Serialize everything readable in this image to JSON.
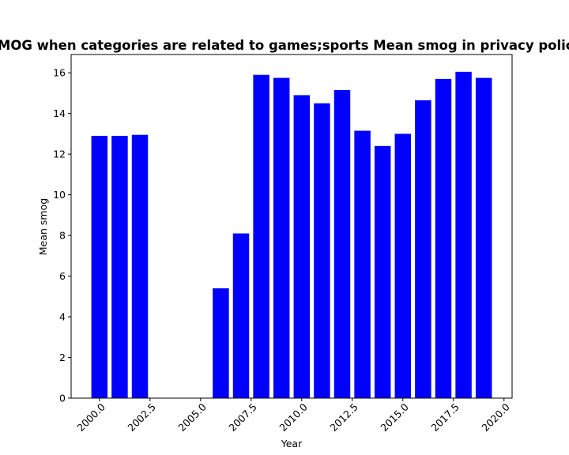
{
  "chart_data": {
    "type": "bar",
    "title": "Mean SMOG when categories are related to games;sports Mean smog in privacy policies by Year",
    "xlabel": "Year",
    "ylabel": "Mean smog",
    "x": [
      2000,
      2001,
      2002,
      2006,
      2007,
      2008,
      2009,
      2010,
      2011,
      2012,
      2013,
      2014,
      2015,
      2016,
      2017,
      2018,
      2019
    ],
    "values": [
      12.9,
      12.9,
      12.95,
      5.4,
      8.1,
      15.9,
      15.75,
      14.9,
      14.5,
      15.15,
      13.15,
      12.4,
      13.0,
      14.65,
      15.7,
      16.05,
      15.75
    ],
    "xlim": [
      1998.6,
      2020.4
    ],
    "ylim": [
      0,
      16.9
    ],
    "xticks": [
      2000,
      2002.5,
      2005,
      2007.5,
      2010,
      2012.5,
      2015,
      2017.5,
      2020
    ],
    "xtick_labels": [
      "2000.0",
      "2002.5",
      "2005.0",
      "2007.5",
      "2010.0",
      "2012.5",
      "2015.0",
      "2017.5",
      "2020.0"
    ],
    "yticks": [
      0,
      2,
      4,
      6,
      8,
      10,
      12,
      14,
      16
    ],
    "ytick_labels": [
      "0",
      "2",
      "4",
      "6",
      "8",
      "10",
      "12",
      "14",
      "16"
    ],
    "bar_color": "#0000ff",
    "grid": false,
    "legend": "none"
  }
}
